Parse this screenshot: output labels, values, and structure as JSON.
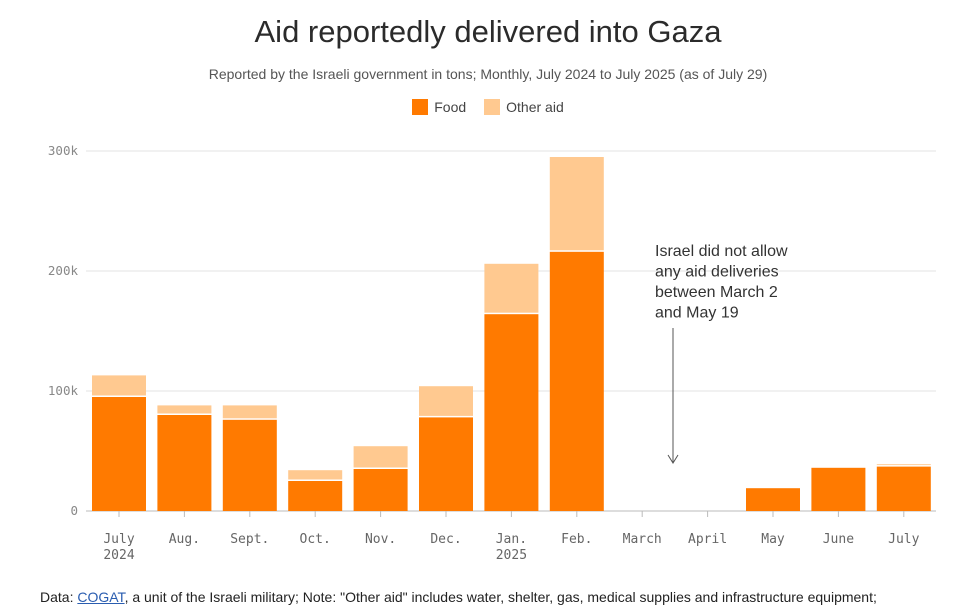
{
  "chart_data": {
    "type": "bar",
    "stacked": true,
    "title": "Aid reportedly delivered into Gaza",
    "subtitle": "Reported by the Israeli government in tons; Monthly, July 2024 to July 2025 (as of July 29)",
    "legend": [
      "Food",
      "Other aid"
    ],
    "categories": [
      [
        "July",
        "2024"
      ],
      [
        "Aug."
      ],
      [
        "Sept."
      ],
      [
        "Oct."
      ],
      [
        "Nov."
      ],
      [
        "Dec."
      ],
      [
        "Jan.",
        "2025"
      ],
      [
        "Feb."
      ],
      [
        "March"
      ],
      [
        "April"
      ],
      [
        "May"
      ],
      [
        "June"
      ],
      [
        "July"
      ]
    ],
    "series": [
      {
        "name": "Food",
        "color": "#ff7a00",
        "values": [
          95000,
          80000,
          76000,
          25000,
          35000,
          78000,
          164000,
          216000,
          0,
          0,
          19000,
          36000,
          37000
        ]
      },
      {
        "name": "Other aid",
        "color": "#ffc990",
        "values": [
          18000,
          8000,
          12000,
          9000,
          19000,
          26000,
          42000,
          79000,
          0,
          0,
          0,
          0,
          2000
        ]
      }
    ],
    "yticks": [
      0,
      100000,
      200000,
      300000
    ],
    "ytick_labels": [
      "0",
      "100k",
      "200k",
      "300k"
    ],
    "ylim": [
      0,
      300000
    ],
    "annotation": {
      "lines": [
        "Israel did not allow",
        "any aid deliveries",
        "between March 2",
        "and May 19"
      ]
    }
  },
  "footer": {
    "prefix": "Data: ",
    "link": "COGAT",
    "rest": ", a unit of the Israeli military; Note: \"Other aid\" includes water, shelter, gas, medical supplies and infrastructure equipment;"
  }
}
